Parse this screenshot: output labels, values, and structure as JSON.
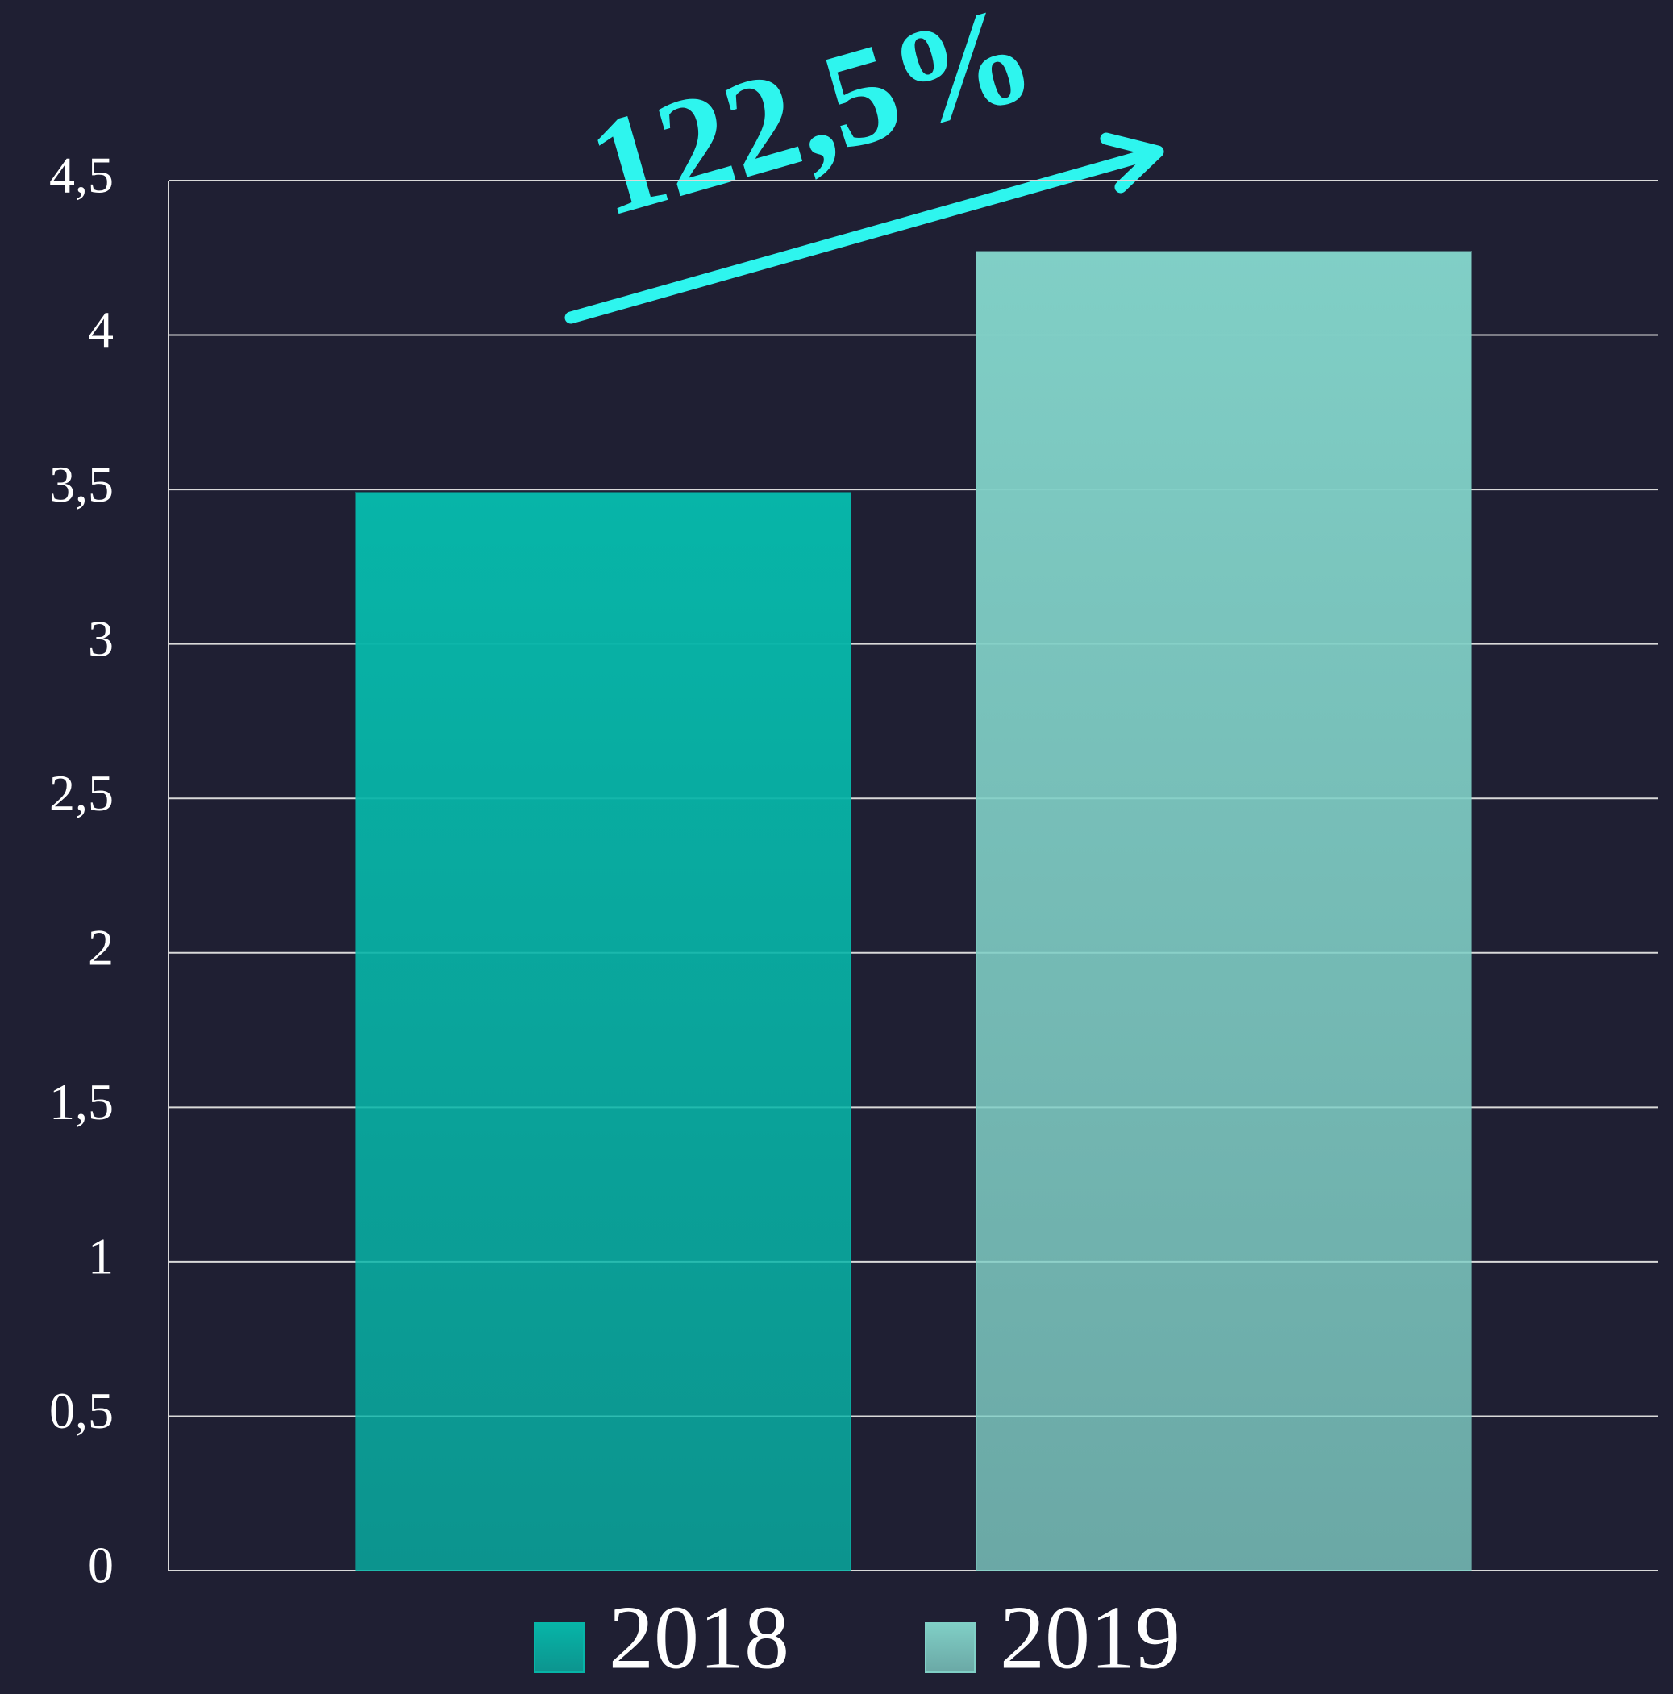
{
  "chart_data": {
    "type": "bar",
    "annotation": "122,5%",
    "categories": [
      null
    ],
    "series": [
      {
        "name": "2018",
        "color": "#07b5a8",
        "values": [
          3.49
        ]
      },
      {
        "name": "2019",
        "color": "#80cfc6",
        "values": [
          4.27
        ]
      }
    ],
    "ylim": [
      0,
      4.5
    ],
    "yticks": [
      0,
      {
        "value": 0.5,
        "label": "0,5"
      },
      1,
      {
        "value": 1.5,
        "label": "1,5"
      },
      2,
      {
        "value": 2.5,
        "label": "2,5"
      },
      3,
      {
        "value": 3.5,
        "label": "3,5"
      },
      4,
      {
        "value": 4.5,
        "label": "4,5"
      }
    ],
    "grid": true,
    "legend": "bottom",
    "annotation_color": "#2ef5ee"
  }
}
